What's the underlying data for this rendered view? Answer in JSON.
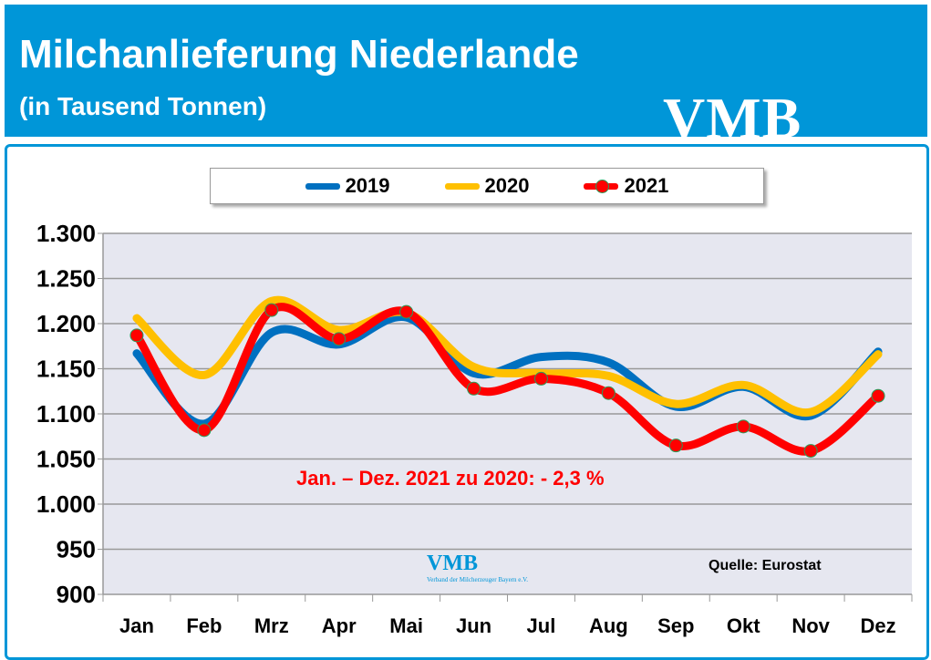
{
  "header": {
    "title": "Milchanlieferung Niederlande",
    "subtitle": "(in Tausend Tonnen)",
    "logo": "VMB"
  },
  "annotation": "Jan. – Dez. 2021 zu 2020: - 2,3 %",
  "source": "Quelle: Eurostat",
  "watermark": {
    "logo": "VMB",
    "tagline": "Verband der Milcherzeuger Bayern e.V."
  },
  "chart_data": {
    "type": "line",
    "categories": [
      "Jan",
      "Feb",
      "Mrz",
      "Apr",
      "Mai",
      "Jun",
      "Jul",
      "Aug",
      "Sep",
      "Okt",
      "Nov",
      "Dez"
    ],
    "ylim": [
      900,
      1300
    ],
    "yticks": [
      "900",
      "950",
      "1.000",
      "1.050",
      "1.100",
      "1.150",
      "1.200",
      "1.250",
      "1.300"
    ],
    "grid": true,
    "legend": "top",
    "series": [
      {
        "name": "2019",
        "color": "#0070c0",
        "markers": false,
        "values": [
          1167,
          1089,
          1190,
          1177,
          1207,
          1145,
          1163,
          1157,
          1108,
          1130,
          1098,
          1169
        ]
      },
      {
        "name": "2020",
        "color": "#ffc000",
        "markers": false,
        "values": [
          1206,
          1143,
          1225,
          1193,
          1212,
          1152,
          1145,
          1142,
          1111,
          1132,
          1102,
          1166
        ]
      },
      {
        "name": "2021",
        "color": "#ff0000",
        "markers": true,
        "values": [
          1187,
          1082,
          1215,
          1183,
          1213,
          1128,
          1139,
          1123,
          1065,
          1086,
          1059,
          1120
        ]
      }
    ]
  }
}
